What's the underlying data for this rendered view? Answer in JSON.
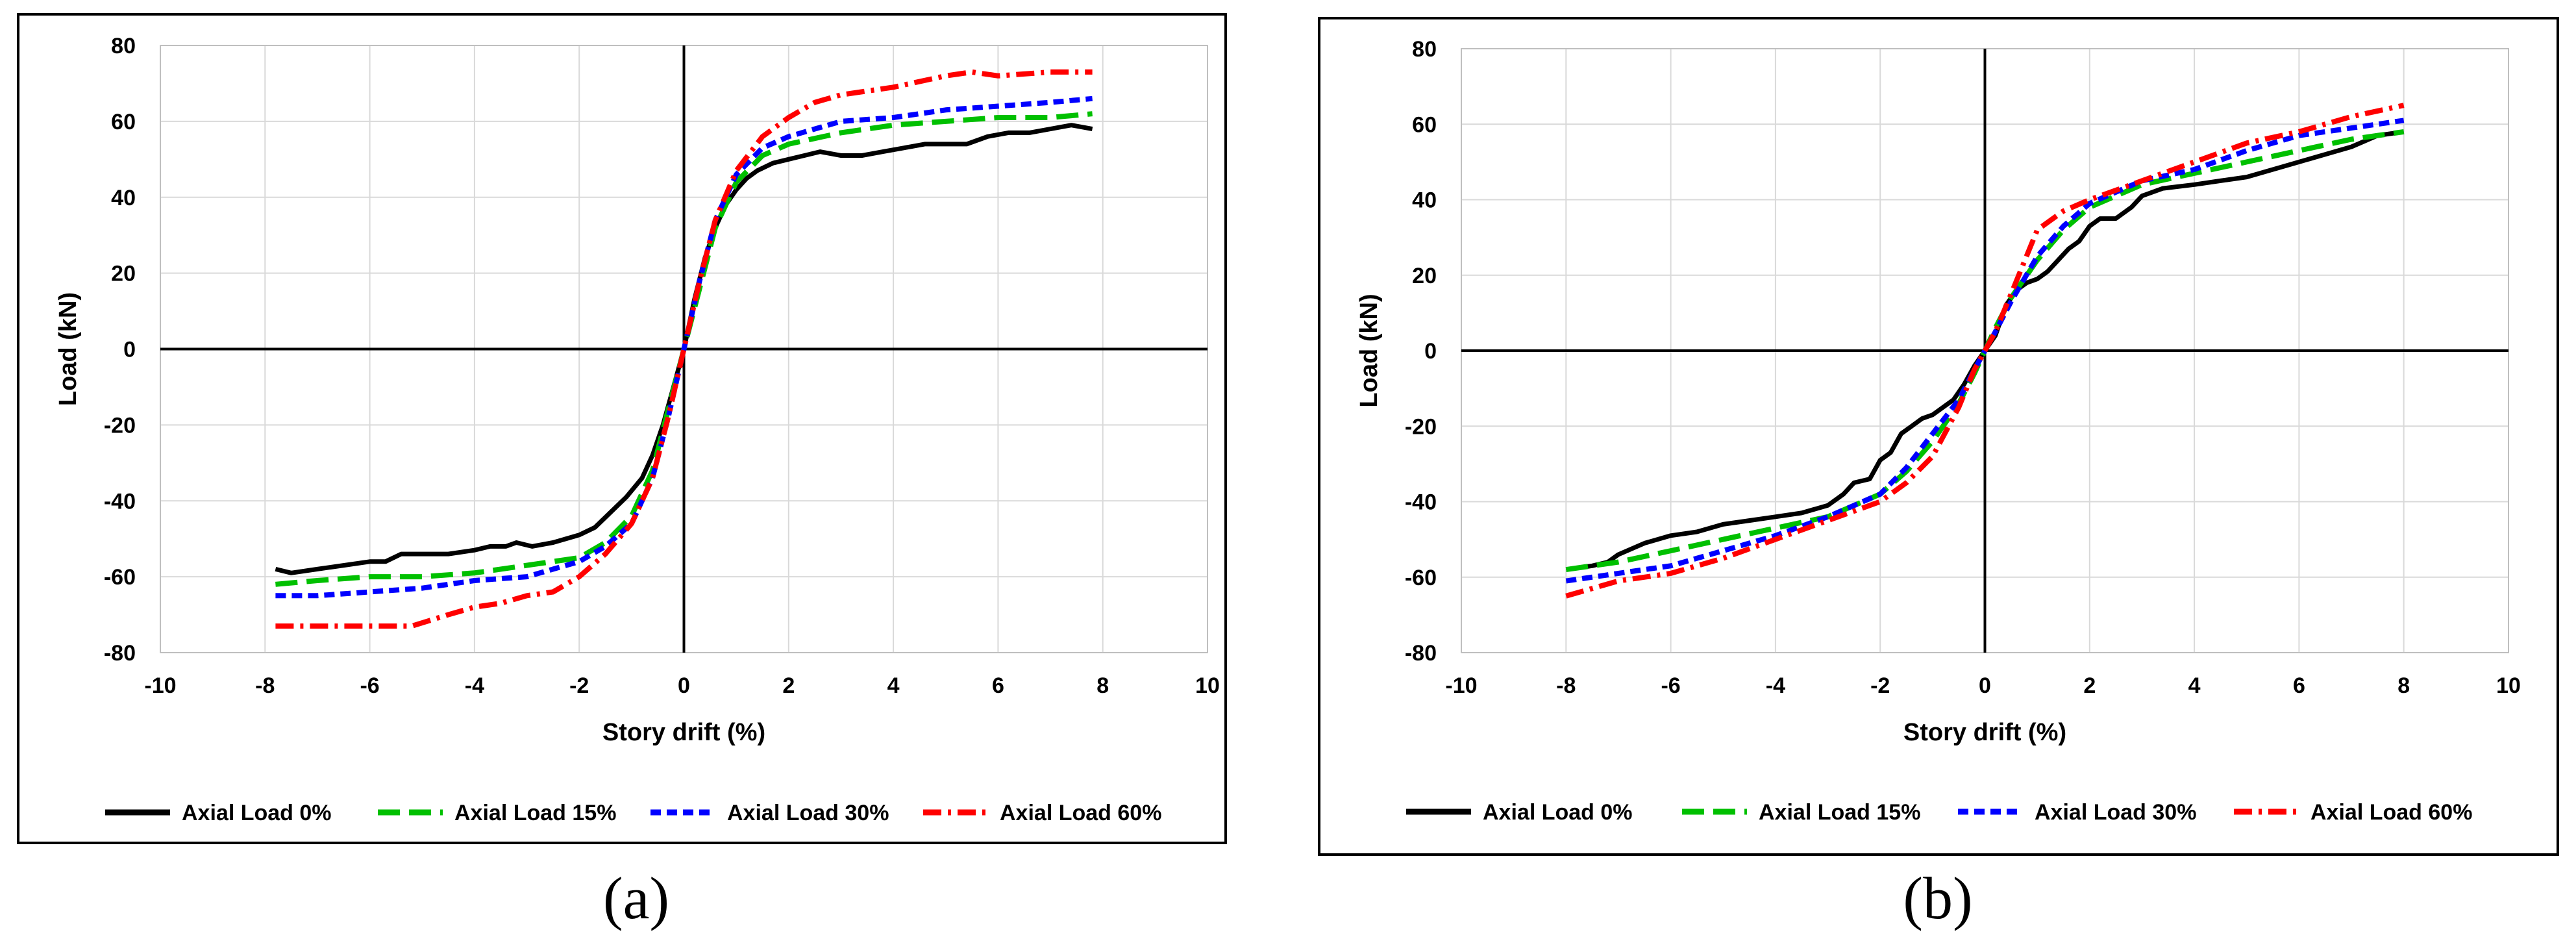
{
  "chart_data": [
    {
      "type": "line",
      "panel": "a",
      "caption": "(a)",
      "xlabel": "Story drift (%)",
      "ylabel": "Load (kN)",
      "xlim": [
        -10,
        10
      ],
      "ylim": [
        -80,
        80
      ],
      "xticks": [
        "-10",
        "-8",
        "-6",
        "-4",
        "-2",
        "0",
        "2",
        "4",
        "6",
        "8",
        "10"
      ],
      "yticks": [
        "80",
        "60",
        "40",
        "20",
        "0",
        "-20",
        "-40",
        "-60",
        "-80"
      ],
      "grid": true,
      "legend_position": "bottom",
      "series": [
        {
          "name": "Axial Load 0%",
          "color": "#000000",
          "style": "solid",
          "x": [
            -7.8,
            -7.5,
            -7.0,
            -6.5,
            -6.0,
            -5.7,
            -5.4,
            -5.0,
            -4.5,
            -4.0,
            -3.7,
            -3.4,
            -3.2,
            -2.9,
            -2.5,
            -2.0,
            -1.7,
            -1.4,
            -1.1,
            -0.8,
            -0.6,
            -0.4,
            -0.2,
            0,
            0.2,
            0.4,
            0.6,
            0.8,
            1.0,
            1.2,
            1.4,
            1.7,
            2.0,
            2.3,
            2.6,
            3.0,
            3.4,
            3.8,
            4.2,
            4.6,
            5.0,
            5.4,
            5.8,
            6.2,
            6.6,
            7.0,
            7.4,
            7.8
          ],
          "y": [
            -58,
            -59,
            -58,
            -57,
            -56,
            -56,
            -54,
            -54,
            -54,
            -53,
            -52,
            -52,
            -51,
            -52,
            -51,
            -49,
            -47,
            -43,
            -39,
            -34,
            -28,
            -20,
            -10,
            0,
            13,
            24,
            32,
            38,
            42,
            45,
            47,
            49,
            50,
            51,
            52,
            51,
            51,
            52,
            53,
            54,
            54,
            54,
            56,
            57,
            57,
            58,
            59,
            58
          ]
        },
        {
          "name": "Axial Load 15%",
          "color": "#00c000",
          "style": "longdash",
          "x": [
            -7.8,
            -7,
            -6,
            -5,
            -4,
            -3,
            -2,
            -1.5,
            -1.0,
            -0.6,
            -0.3,
            0,
            0.3,
            0.6,
            1.0,
            1.5,
            2.0,
            3,
            4,
            5,
            6,
            7,
            7.8
          ],
          "y": [
            -62,
            -61,
            -60,
            -60,
            -59,
            -57,
            -55,
            -51,
            -44,
            -32,
            -16,
            0,
            16,
            32,
            44,
            51,
            54,
            57,
            59,
            60,
            61,
            61,
            62
          ]
        },
        {
          "name": "Axial Load 30%",
          "color": "#0000ff",
          "style": "dash",
          "x": [
            -7.8,
            -7,
            -6,
            -5,
            -4,
            -3,
            -2,
            -1.5,
            -1.0,
            -0.6,
            -0.3,
            0,
            0.3,
            0.6,
            1.0,
            1.5,
            2.0,
            3,
            4,
            5,
            6,
            7,
            7.8
          ],
          "y": [
            -65,
            -65,
            -64,
            -63,
            -61,
            -60,
            -56,
            -52,
            -46,
            -34,
            -18,
            0,
            18,
            34,
            46,
            53,
            56,
            60,
            61,
            63,
            64,
            65,
            66
          ]
        },
        {
          "name": "Axial Load 60%",
          "color": "#ff0000",
          "style": "dashdot",
          "x": [
            -7.8,
            -7,
            -6,
            -5.2,
            -4.5,
            -4,
            -3.5,
            -3,
            -2.5,
            -2.0,
            -1.5,
            -1.0,
            -0.6,
            -0.3,
            0,
            0.3,
            0.6,
            1.0,
            1.5,
            2.0,
            2.5,
            3,
            4,
            5,
            5.5,
            6,
            7,
            7.8
          ],
          "y": [
            -73,
            -73,
            -73,
            -73,
            -70,
            -68,
            -67,
            -65,
            -64,
            -60,
            -54,
            -46,
            -34,
            -18,
            0,
            18,
            34,
            47,
            56,
            61,
            65,
            67,
            69,
            72,
            73,
            72,
            73,
            73
          ]
        }
      ]
    },
    {
      "type": "line",
      "panel": "b",
      "caption": "(b)",
      "xlabel": "Story drift (%)",
      "ylabel": "Load (kN)",
      "xlim": [
        -10,
        10
      ],
      "ylim": [
        -80,
        80
      ],
      "xticks": [
        "-10",
        "-8",
        "-6",
        "-4",
        "-2",
        "0",
        "2",
        "4",
        "6",
        "8",
        "10"
      ],
      "yticks": [
        "80",
        "60",
        "40",
        "20",
        "0",
        "-20",
        "-40",
        "-60",
        "-80"
      ],
      "grid": true,
      "legend_position": "bottom",
      "series": [
        {
          "name": "Axial Load 0%",
          "color": "#000000",
          "style": "solid",
          "x": [
            -8.0,
            -7.5,
            -7.2,
            -7.0,
            -6.5,
            -6.0,
            -5.5,
            -5.0,
            -4.5,
            -4.0,
            -3.5,
            -3.0,
            -2.7,
            -2.5,
            -2.2,
            -2.0,
            -1.8,
            -1.6,
            -1.4,
            -1.2,
            -1.0,
            -0.8,
            -0.6,
            -0.4,
            -0.2,
            0,
            0.2,
            0.4,
            0.6,
            0.8,
            1.0,
            1.2,
            1.4,
            1.6,
            1.8,
            2.0,
            2.2,
            2.5,
            2.8,
            3.0,
            3.4,
            4.0,
            4.5,
            5.0,
            5.5,
            6.0,
            6.5,
            7.0,
            7.5,
            8.0
          ],
          "y": [
            -58,
            -57,
            -56,
            -54,
            -51,
            -49,
            -48,
            -46,
            -45,
            -44,
            -43,
            -41,
            -38,
            -35,
            -34,
            -29,
            -27,
            -22,
            -20,
            -18,
            -17,
            -15,
            -13,
            -9,
            -4,
            0,
            4,
            12,
            16,
            18,
            19,
            21,
            24,
            27,
            29,
            33,
            35,
            35,
            38,
            41,
            43,
            44,
            45,
            46,
            48,
            50,
            52,
            54,
            57,
            58
          ]
        },
        {
          "name": "Axial Load 15%",
          "color": "#00c000",
          "style": "longdash",
          "x": [
            -8,
            -7,
            -6,
            -5,
            -4,
            -3,
            -2,
            -1.5,
            -1.0,
            -0.5,
            -0.2,
            0,
            0.2,
            0.5,
            1.0,
            1.5,
            2,
            3,
            4,
            5,
            6,
            7,
            8
          ],
          "y": [
            -58,
            -56,
            -53,
            -50,
            -47,
            -44,
            -38,
            -32,
            -24,
            -14,
            -6,
            0,
            6,
            14,
            24,
            32,
            38,
            44,
            47,
            50,
            53,
            56,
            58
          ]
        },
        {
          "name": "Axial Load 30%",
          "color": "#0000ff",
          "style": "dash",
          "x": [
            -8,
            -7,
            -6,
            -5,
            -4,
            -3,
            -2,
            -1.5,
            -1.0,
            -0.5,
            -0.2,
            0,
            0.2,
            0.5,
            1.0,
            1.5,
            2,
            3,
            4,
            5,
            6,
            7,
            8
          ],
          "y": [
            -61,
            -59,
            -57,
            -53,
            -49,
            -44,
            -38,
            -31,
            -22,
            -13,
            -5,
            0,
            5,
            13,
            25,
            33,
            39,
            45,
            48,
            53,
            57,
            59,
            61
          ]
        },
        {
          "name": "Axial Load 60%",
          "color": "#ff0000",
          "style": "dashdot",
          "x": [
            -8,
            -7,
            -6,
            -5,
            -4,
            -3,
            -2,
            -1.5,
            -1.0,
            -0.5,
            -0.2,
            0,
            0.2,
            0.5,
            1.0,
            1.5,
            2,
            3,
            4,
            5,
            6,
            7,
            8
          ],
          "y": [
            -65,
            -61,
            -59,
            -55,
            -50,
            -45,
            -40,
            -35,
            -28,
            -15,
            -5,
            0,
            5,
            15,
            32,
            37,
            40,
            45,
            50,
            55,
            58,
            62,
            65
          ]
        }
      ]
    }
  ]
}
